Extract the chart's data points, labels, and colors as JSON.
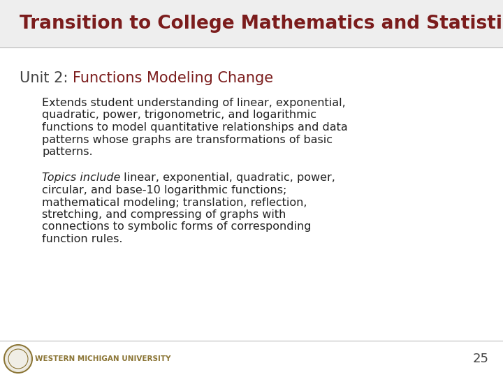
{
  "title": "Transition to College Mathematics and Statistics",
  "title_color": "#7B1C1C",
  "title_fontsize": 19,
  "unit_prefix": "Unit 2: ",
  "unit_prefix_color": "#444444",
  "unit_suffix": "Functions Modeling Change",
  "unit_suffix_color": "#7B1C1C",
  "unit_fontsize": 15,
  "body1_lines": [
    "Extends student understanding of linear, exponential,",
    "quadratic, power, trigonometric, and logarithmic",
    "functions to model quantitative relationships and data",
    "patterns whose graphs are transformations of basic",
    "patterns."
  ],
  "body1_color": "#222222",
  "body1_fontsize": 11.5,
  "body2_italic": "Topics include",
  "body2_rest_lines": [
    " linear, exponential, quadratic, power,",
    "circular, and base-10 logarithmic functions;",
    "mathematical modeling; translation, reflection,",
    "stretching, and compressing of graphs with",
    "connections to symbolic forms of corresponding",
    "function rules."
  ],
  "body2_color": "#222222",
  "body2_fontsize": 11.5,
  "footer_univ": "WESTERN MICHIGAN UNIVERSITY",
  "footer_color": "#8B7535",
  "page_number": "25",
  "page_number_color": "#444444",
  "background_color": "#FFFFFF",
  "header_bg_color": "#EEEEEE",
  "divider_color": "#BBBBBB"
}
